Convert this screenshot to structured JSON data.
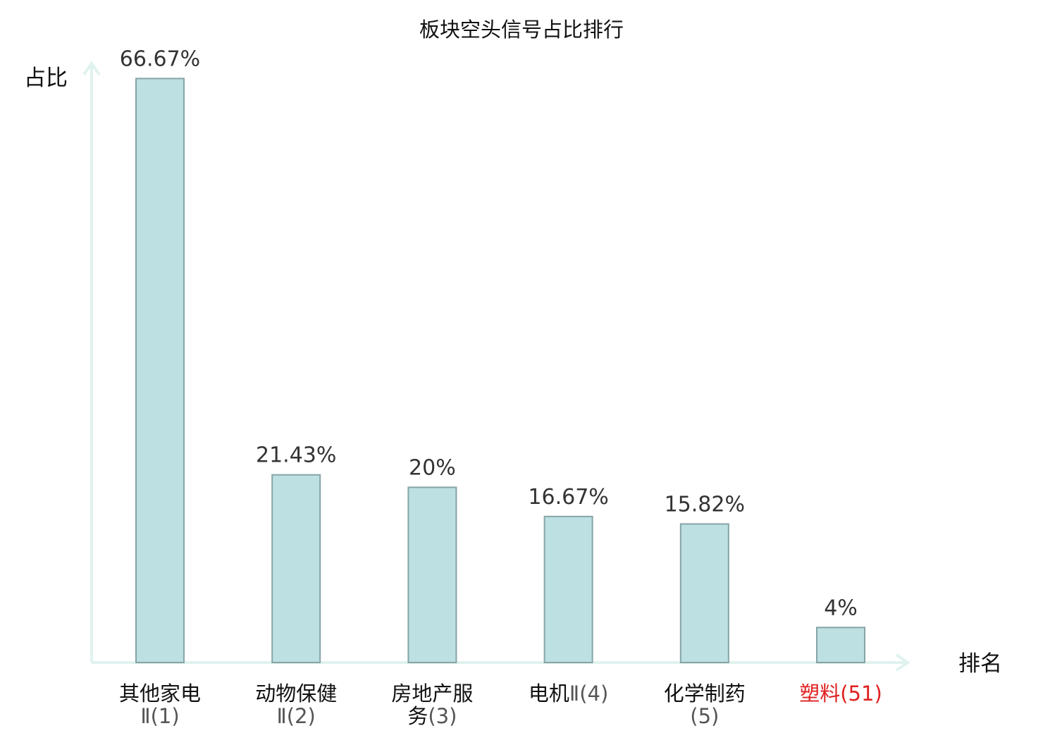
{
  "chart_data": {
    "type": "bar",
    "title": "板块空头信号占比排行",
    "ylabel": "占比",
    "xlabel": "排名",
    "ylim": [
      0,
      70
    ],
    "grid": false,
    "categories": [
      {
        "name_lines": [
          "其他家电"
        ],
        "rank_line": "Ⅱ(1)",
        "highlight": false
      },
      {
        "name_lines": [
          "动物保健"
        ],
        "rank_line": "Ⅱ(2)",
        "highlight": false
      },
      {
        "name_lines": [
          "房地产服",
          "务"
        ],
        "rank_line": "(3)",
        "highlight": false
      },
      {
        "name_lines": [
          "电机"
        ],
        "rank_line": "Ⅱ(4)",
        "highlight": false
      },
      {
        "name_lines": [
          "化学制药"
        ],
        "rank_line": "(5)",
        "highlight": false
      },
      {
        "name_lines": [
          "塑料"
        ],
        "rank_line": "(51)",
        "highlight": true
      }
    ],
    "values": [
      66.67,
      21.43,
      20,
      16.67,
      15.82,
      4
    ],
    "value_labels": [
      "66.67%",
      "21.43%",
      "20%",
      "16.67%",
      "15.82%",
      "4%"
    ],
    "colors": {
      "bar_fill": "#bde0e2",
      "bar_stroke": "#86a4a6",
      "axis": "#e0f2ef",
      "highlight": "#e02020",
      "name_text": "#111111",
      "rank_text": "#555555"
    }
  }
}
